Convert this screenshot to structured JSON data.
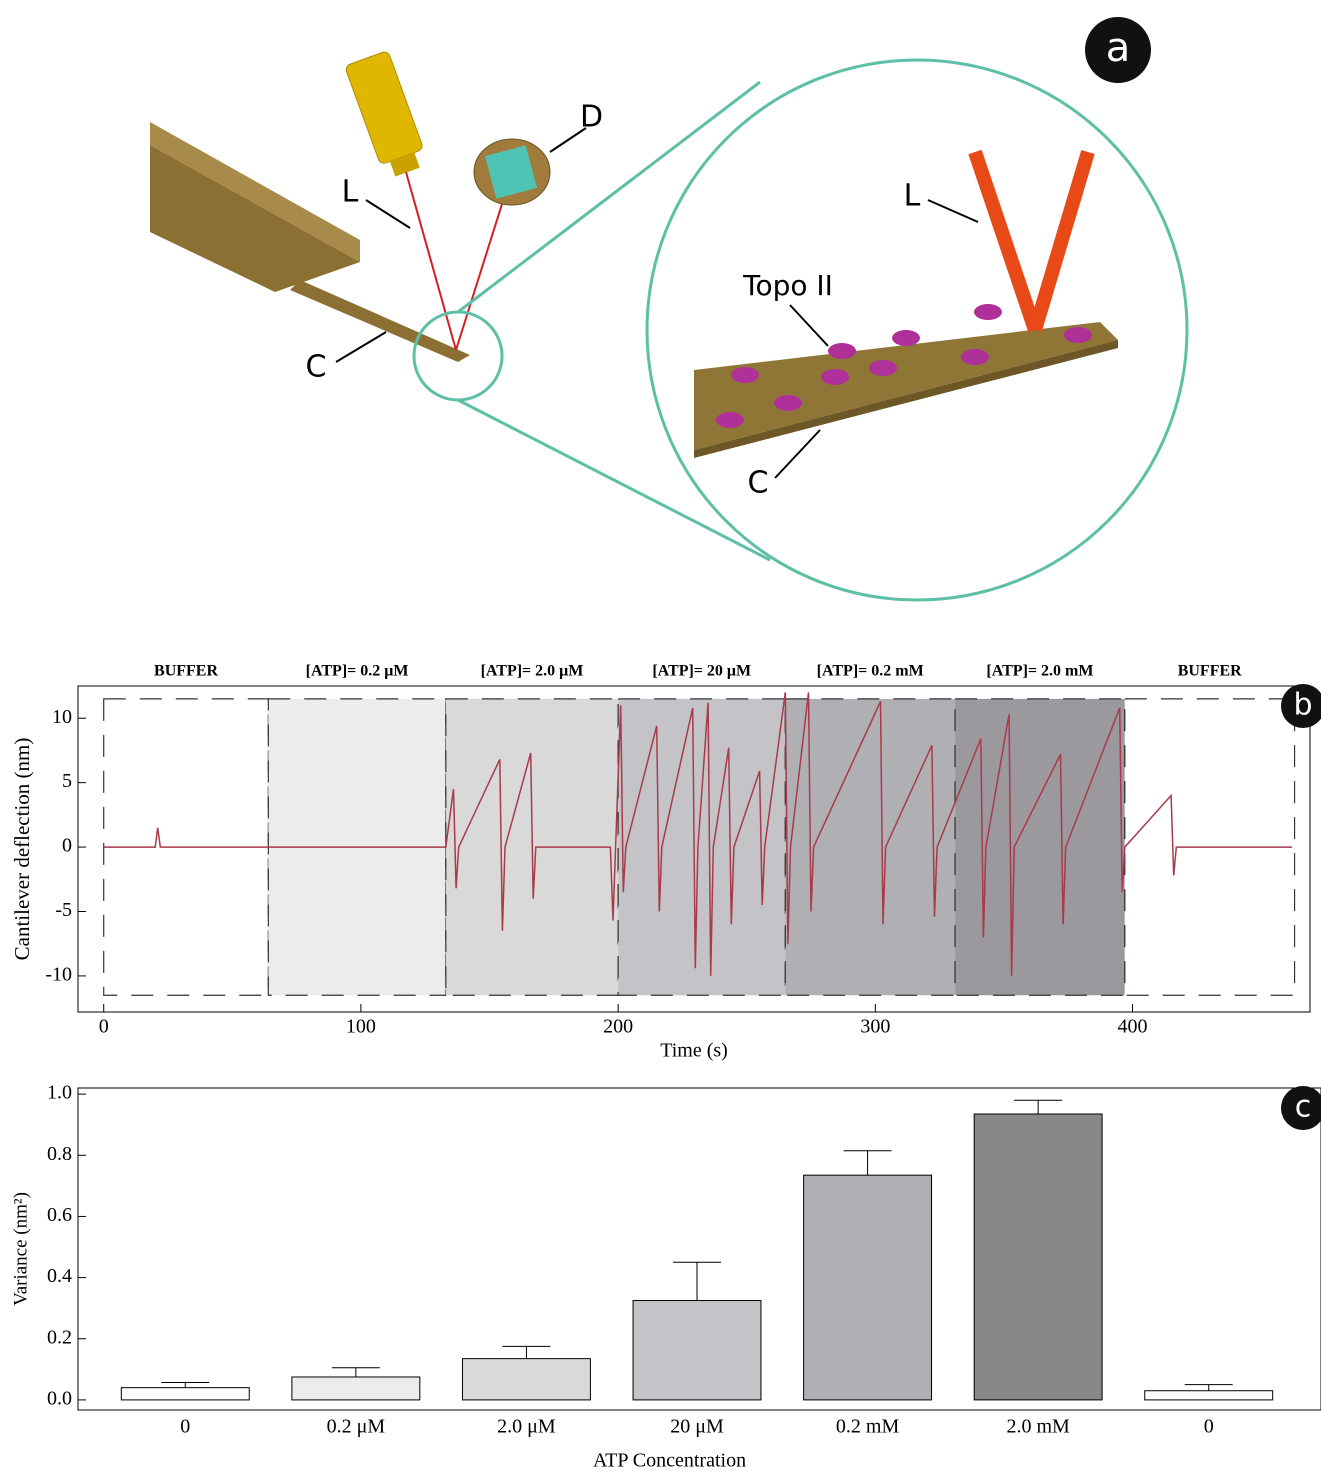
{
  "diagram": {
    "panel": "a",
    "labels": {
      "laser": "L",
      "detector": "D",
      "cantilever": "C",
      "protein": "Topo II",
      "zoom_laser": "L",
      "zoom_cantilever": "C"
    }
  },
  "chart_data": [
    {
      "type": "line",
      "panel": "b",
      "xlabel": "Time (s)",
      "ylabel": "Cantilever deflection (nm)",
      "color": "#a83a4a",
      "xlim": [
        -10,
        469
      ],
      "xticks": [
        0,
        100,
        200,
        300,
        400
      ],
      "ylim": [
        -12.8,
        12.5
      ],
      "yticks": [
        -10,
        -5,
        0,
        5,
        10
      ],
      "region_ylim": [
        -11.5,
        11.5
      ],
      "regions": [
        {
          "label": "BUFFER",
          "start": 0,
          "end": 64,
          "color": "#ffffff"
        },
        {
          "label": "[ATP]= 0.2  μM",
          "start": 64,
          "end": 133,
          "color": "#ececec"
        },
        {
          "label": "[ATP]= 2.0 μM",
          "start": 133,
          "end": 200,
          "color": "#d9d9da"
        },
        {
          "label": "[ATP]= 20 μM",
          "start": 200,
          "end": 265,
          "color": "#c4c4c8"
        },
        {
          "label": "[ATP]= 0.2 mM",
          "start": 265,
          "end": 331,
          "color": "#b0afb3"
        },
        {
          "label": "[ATP]= 2.0 mM",
          "start": 331,
          "end": 397,
          "color": "#9c999e"
        },
        {
          "label": "BUFFER",
          "start": 397,
          "end": 463,
          "color": "#ffffff"
        }
      ],
      "x": [
        0,
        20,
        21,
        22,
        64,
        100,
        133,
        136,
        137,
        138,
        154,
        155,
        156,
        166,
        167,
        168,
        197,
        198,
        199,
        201,
        202,
        203,
        215,
        216,
        217,
        229,
        230,
        231,
        235,
        236,
        237,
        243,
        244,
        245,
        255,
        256,
        257,
        265,
        266,
        267,
        274,
        275,
        276,
        302,
        303,
        304,
        322,
        323,
        324,
        341,
        342,
        343,
        352,
        353,
        354,
        372,
        373,
        374,
        395,
        396,
        397,
        415,
        416,
        417,
        462
      ],
      "values": [
        0,
        0,
        1.5,
        0,
        0,
        0,
        0,
        4.5,
        -3.2,
        0,
        6.8,
        -6.5,
        0,
        7.3,
        -4,
        0,
        0,
        -5.7,
        0,
        11,
        -3.5,
        0,
        9.4,
        -5,
        0,
        10.8,
        -9.4,
        0,
        11.2,
        -10,
        0,
        7.7,
        -6,
        0,
        5.9,
        -4.5,
        0,
        12,
        -7.5,
        0,
        12,
        -5,
        0,
        11.3,
        -6,
        0,
        7.9,
        -5.4,
        0,
        8.4,
        -7,
        0,
        10.3,
        -10,
        0,
        7.2,
        -6,
        0,
        10.8,
        -3.5,
        0,
        4,
        -2.2,
        0,
        0
      ]
    },
    {
      "type": "bar",
      "panel": "c",
      "xlabel": "ATP Concentration",
      "ylabel": "Variance (nm²)",
      "categories": [
        "0",
        "0.2 μM",
        "2.0 μM",
        "20 μM",
        "0.2 mM",
        "2.0 mM",
        "0"
      ],
      "values": [
        0.04,
        0.075,
        0.135,
        0.325,
        0.735,
        0.935,
        0.03
      ],
      "errors": [
        0.017,
        0.03,
        0.04,
        0.125,
        0.08,
        0.045,
        0.02
      ],
      "colors": [
        "#ffffff",
        "#ececec",
        "#d9d9da",
        "#c4c4c8",
        "#afaeb2",
        "#8a8789",
        "#ffffff"
      ],
      "ylim": [
        -0.033,
        1.02
      ],
      "yticks": [
        {
          "value": 0,
          "label": "0.0"
        },
        0.2,
        0.4,
        0.6,
        0.8,
        {
          "value": 1,
          "label": "1.0"
        }
      ]
    }
  ]
}
